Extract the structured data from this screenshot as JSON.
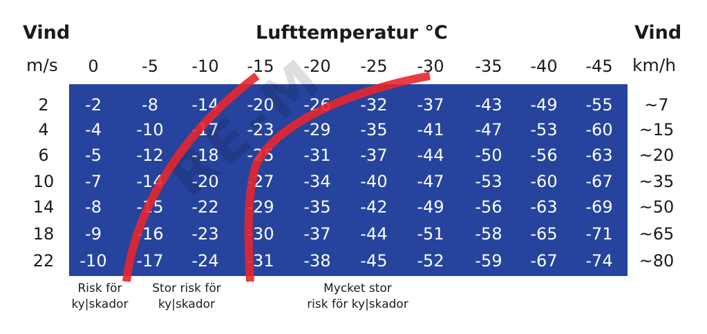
{
  "header": {
    "left_title": "Vind",
    "center_title": "Lufttemperatur °C",
    "right_title": "Vind",
    "left_unit": "m/s",
    "right_unit": "km/h"
  },
  "watermark": "RE-M",
  "chart_data": {
    "type": "table",
    "title": "Lufttemperatur °C",
    "columns": [
      "0",
      "-5",
      "-10",
      "-15",
      "-20",
      "-25",
      "-30",
      "-35",
      "-40",
      "-45"
    ],
    "rows": [
      {
        "wind_ms": "2",
        "wind_kmh": "~7",
        "values": [
          "-2",
          "-8",
          "-14",
          "-20",
          "-26",
          "-32",
          "-37",
          "-43",
          "-49",
          "-55"
        ]
      },
      {
        "wind_ms": "4",
        "wind_kmh": "~15",
        "values": [
          "-4",
          "-10",
          "-17",
          "-23",
          "-29",
          "-35",
          "-41",
          "-47",
          "-53",
          "-60"
        ]
      },
      {
        "wind_ms": "6",
        "wind_kmh": "~20",
        "values": [
          "-5",
          "-12",
          "-18",
          "-25",
          "-31",
          "-37",
          "-44",
          "-50",
          "-56",
          "-63"
        ]
      },
      {
        "wind_ms": "10",
        "wind_kmh": "~35",
        "values": [
          "-7",
          "-14",
          "-20",
          "-27",
          "-34",
          "-40",
          "-47",
          "-53",
          "-60",
          "-67"
        ]
      },
      {
        "wind_ms": "14",
        "wind_kmh": "~50",
        "values": [
          "-8",
          "-15",
          "-22",
          "-29",
          "-35",
          "-42",
          "-49",
          "-56",
          "-63",
          "-69"
        ]
      },
      {
        "wind_ms": "18",
        "wind_kmh": "~65",
        "values": [
          "-9",
          "-16",
          "-23",
          "-30",
          "-37",
          "-44",
          "-51",
          "-58",
          "-65",
          "-71"
        ]
      },
      {
        "wind_ms": "22",
        "wind_kmh": "~80",
        "values": [
          "-10",
          "-17",
          "-24",
          "-31",
          "-38",
          "-45",
          "-52",
          "-59",
          "-67",
          "-74"
        ]
      }
    ],
    "zones": [
      {
        "lines": [
          "Risk för",
          "ky|skador"
        ]
      },
      {
        "lines": [
          "Stor risk för",
          "ky|skador"
        ]
      },
      {
        "lines": [
          "Mycket stor",
          "risk för ky|skador"
        ]
      }
    ],
    "colors": {
      "panel": "#26449e",
      "zone_line": "#e8262d",
      "cell_text": "#ffffff"
    }
  }
}
